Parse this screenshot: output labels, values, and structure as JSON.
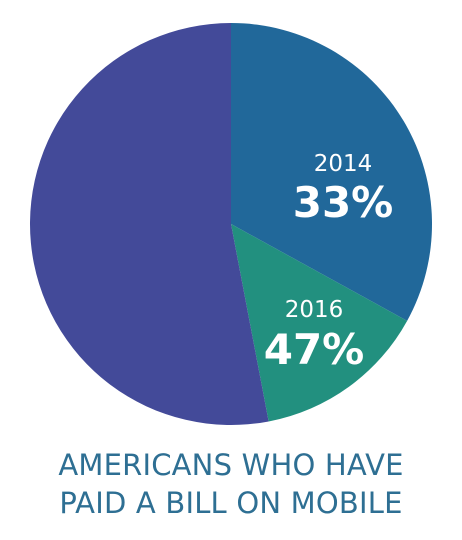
{
  "chart_data": {
    "type": "pie",
    "slices": [
      {
        "name": "2014",
        "label": "33%",
        "value": 33,
        "color": "#21689a"
      },
      {
        "name": "2016",
        "label": "47%",
        "value": 14,
        "color": "#22907f"
      },
      {
        "name": "",
        "label": "",
        "value": 53,
        "color": "#434a99"
      }
    ],
    "caption": [
      "AMERICANS WHO HAVE",
      "PAID A BILL ON MOBILE"
    ]
  }
}
